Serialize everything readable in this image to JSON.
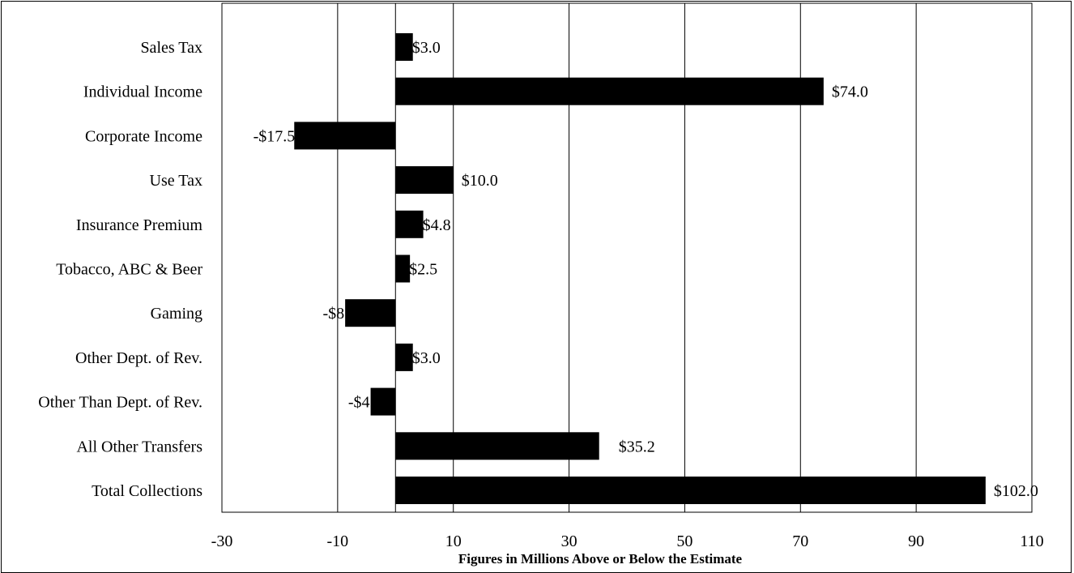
{
  "chart_data": {
    "type": "bar",
    "orientation": "horizontal",
    "title": "",
    "xlabel": "Figures in Millions Above or Below the Estimate",
    "ylabel": "",
    "categories": [
      "Sales Tax",
      "Individual Income",
      "Corporate Income",
      "Use Tax",
      "Insurance Premium",
      "Tobacco, ABC & Beer",
      "Gaming",
      "Other Dept. of Rev.",
      "Other Than Dept. of Rev.",
      "All Other Transfers",
      "Total Collections"
    ],
    "values": [
      3.0,
      74.0,
      -17.5,
      10.0,
      4.8,
      2.5,
      -8.7,
      3.0,
      -4.3,
      35.2,
      102.0
    ],
    "data_labels": [
      "$3.0",
      "$74.0",
      "-$17.5",
      "$10.0",
      "$4.8",
      "$2.5",
      "-$8.7",
      "$3.0",
      "-$4.3",
      "$35.2",
      "$102.0"
    ],
    "xlim": [
      -30,
      110
    ],
    "xticks": [
      -30,
      -10,
      10,
      30,
      50,
      70,
      90,
      110
    ],
    "xtick_labels": [
      "-30",
      "-10",
      "10",
      "30",
      "50",
      "70",
      "90",
      "110"
    ],
    "grid": "vertical",
    "legend": "none",
    "bar_color": "#000000"
  }
}
